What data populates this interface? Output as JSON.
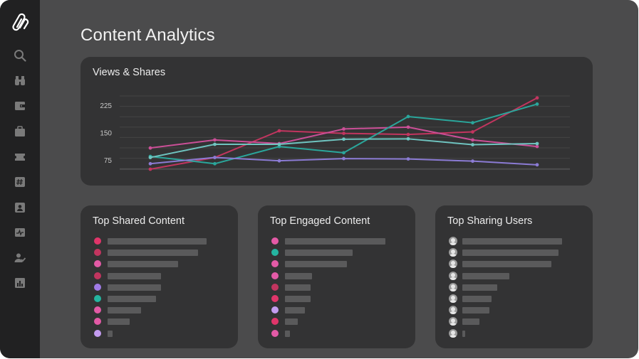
{
  "page": {
    "title": "Content Analytics"
  },
  "sidebar": {
    "items": [
      {
        "icon": "search-icon"
      },
      {
        "icon": "binoculars-icon"
      },
      {
        "icon": "wallet-icon"
      },
      {
        "icon": "briefcase-icon"
      },
      {
        "icon": "ticket-icon"
      },
      {
        "icon": "hashtag-icon"
      },
      {
        "icon": "contacts-icon"
      },
      {
        "icon": "activity-icon"
      },
      {
        "icon": "users-icon"
      },
      {
        "icon": "report-icon"
      }
    ]
  },
  "chart_card": {
    "title": "Views & Shares"
  },
  "chart_data": {
    "type": "line",
    "yticks": [
      "225",
      "150",
      "75"
    ],
    "ylim": [
      50,
      260
    ],
    "x": [
      1,
      2,
      3,
      4,
      5,
      6,
      7
    ],
    "grid": true,
    "series": [
      {
        "color": "#c2355f",
        "values": [
          50,
          82,
          155,
          148,
          145,
          152,
          245
        ]
      },
      {
        "color": "#cb4f97",
        "values": [
          108,
          130,
          120,
          160,
          165,
          130,
          112
        ]
      },
      {
        "color": "#2aa69b",
        "values": [
          85,
          65,
          112,
          95,
          194,
          177,
          228
        ]
      },
      {
        "color": "#6fc4c0",
        "values": [
          82,
          118,
          118,
          132,
          133,
          117,
          120
        ]
      },
      {
        "color": "#8b7bd4",
        "values": [
          65,
          82,
          73,
          79,
          78,
          72,
          62
        ]
      }
    ]
  },
  "top_shared": {
    "title": "Top Shared Content",
    "items": [
      {
        "color": "#e0356a",
        "value": 0.94
      },
      {
        "color": "#c2355f",
        "value": 0.86
      },
      {
        "color": "#e35aa6",
        "value": 0.67
      },
      {
        "color": "#c2355f",
        "value": 0.51
      },
      {
        "color": "#a07be6",
        "value": 0.51
      },
      {
        "color": "#24b5a0",
        "value": 0.46
      },
      {
        "color": "#e35aa6",
        "value": 0.32
      },
      {
        "color": "#e35aa6",
        "value": 0.21
      },
      {
        "color": "#c39cf0",
        "value": 0.05
      }
    ]
  },
  "top_engaged": {
    "title": "Top Engaged Content",
    "items": [
      {
        "color": "#e35aa6",
        "value": 0.95
      },
      {
        "color": "#24b5a0",
        "value": 0.64
      },
      {
        "color": "#e35aa6",
        "value": 0.59
      },
      {
        "color": "#e35aa6",
        "value": 0.26
      },
      {
        "color": "#c2355f",
        "value": 0.24
      },
      {
        "color": "#e0356a",
        "value": 0.24
      },
      {
        "color": "#c39cf0",
        "value": 0.19
      },
      {
        "color": "#e0356a",
        "value": 0.12
      },
      {
        "color": "#e35aa6",
        "value": 0.05
      }
    ]
  },
  "top_users": {
    "title": "Top Sharing Users",
    "items": [
      {
        "value": 0.95
      },
      {
        "value": 0.92
      },
      {
        "value": 0.85
      },
      {
        "value": 0.45
      },
      {
        "value": 0.33
      },
      {
        "value": 0.28
      },
      {
        "value": 0.26
      },
      {
        "value": 0.16
      },
      {
        "value": 0.02
      }
    ]
  }
}
